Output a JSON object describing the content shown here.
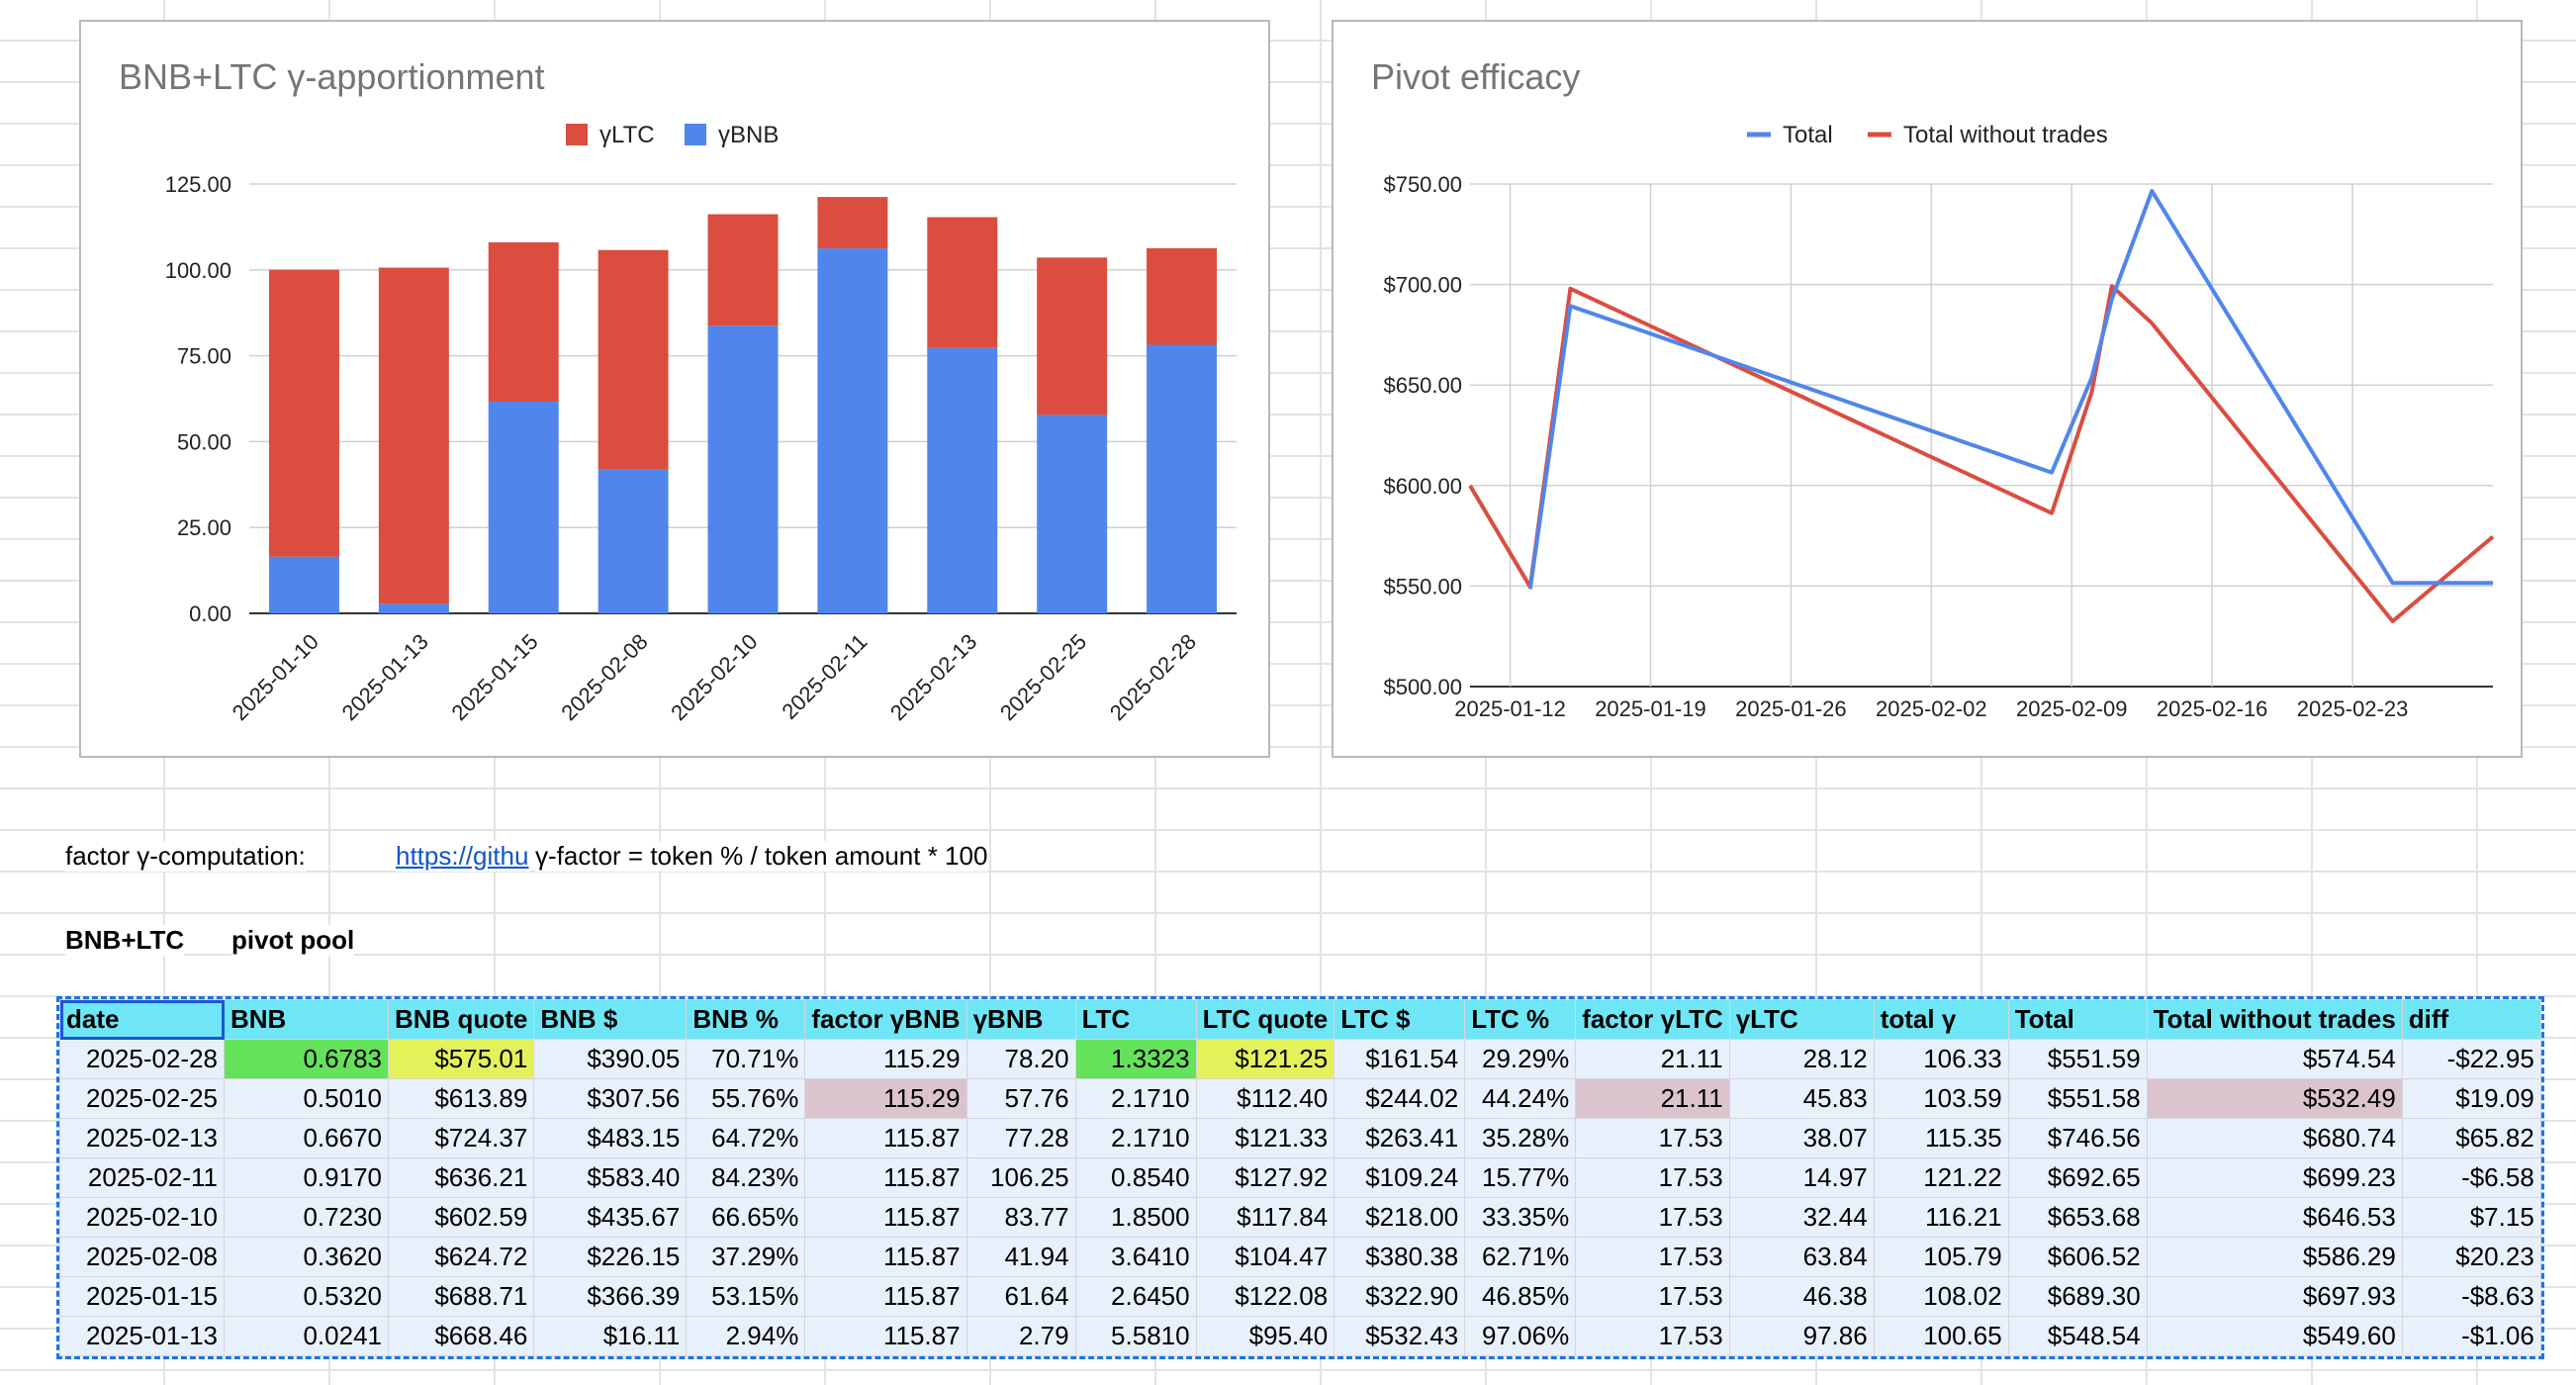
{
  "chart_data": [
    {
      "type": "bar",
      "stacked": true,
      "title": "BNB+LTC γ-apportionment",
      "legend_position": "top",
      "categories": [
        "2025-01-10",
        "2025-01-13",
        "2025-01-15",
        "2025-02-08",
        "2025-02-10",
        "2025-02-11",
        "2025-02-13",
        "2025-02-25",
        "2025-02-28"
      ],
      "series": [
        {
          "name": "γLTC",
          "color": "#db4d3f",
          "values": [
            83.5,
            97.86,
            46.38,
            63.84,
            32.44,
            14.97,
            38.07,
            45.83,
            28.12
          ]
        },
        {
          "name": "γBNB",
          "color": "#5086ec",
          "values": [
            16.5,
            2.79,
            61.64,
            41.94,
            83.77,
            106.25,
            77.28,
            57.76,
            78.2
          ]
        }
      ],
      "legend_order": [
        "γLTC",
        "γBNB"
      ],
      "yticks": [
        "0.00",
        "25.00",
        "50.00",
        "75.00",
        "100.00",
        "125.00"
      ],
      "ylim": [
        0,
        125
      ],
      "grid": true
    },
    {
      "type": "line",
      "title": "Pivot efficacy",
      "legend_position": "top",
      "xticks": [
        "2025-01-12",
        "2025-01-19",
        "2025-01-26",
        "2025-02-02",
        "2025-02-09",
        "2025-02-16",
        "2025-02-23"
      ],
      "xlim": [
        "2025-01-10",
        "2025-03-02"
      ],
      "yticks": [
        "$500.00",
        "$550.00",
        "$600.00",
        "$650.00",
        "$700.00",
        "$750.00"
      ],
      "ylim": [
        500,
        750
      ],
      "grid": true,
      "series": [
        {
          "name": "Total",
          "color": "#5086ec",
          "x": [
            "2025-01-13",
            "2025-01-15",
            "2025-02-08",
            "2025-02-10",
            "2025-02-11",
            "2025-02-13",
            "2025-02-25",
            "2025-03-02"
          ],
          "y": [
            548.54,
            689.3,
            606.52,
            653.68,
            692.65,
            746.56,
            551.59,
            551.59
          ]
        },
        {
          "name": "Total without trades",
          "color": "#db4d3f",
          "x": [
            "2025-01-10",
            "2025-01-13",
            "2025-01-15",
            "2025-02-08",
            "2025-02-10",
            "2025-02-11",
            "2025-02-13",
            "2025-02-25",
            "2025-03-02"
          ],
          "y": [
            600.0,
            549.6,
            697.93,
            586.29,
            646.53,
            699.23,
            680.74,
            532.49,
            574.54
          ]
        }
      ]
    }
  ],
  "notes": {
    "factor_label": "factor γ-computation:",
    "link_text": "https://githu",
    "formula": "γ-factor = token % / token amount * 100",
    "pool_name": "BNB+LTC",
    "pool_type": "pivot pool"
  },
  "table": {
    "headers": [
      "date",
      "BNB",
      "BNB quote",
      "BNB $",
      "BNB %",
      "factor γBNB",
      "γBNB",
      "LTC",
      "LTC quote",
      "LTC $",
      "LTC %",
      "factor γLTC",
      "γLTC",
      "total γ",
      "Total",
      "Total without trades",
      "diff"
    ],
    "rows": [
      [
        "2025-02-28",
        "0.6783",
        "$575.01",
        "$390.05",
        "70.71%",
        "115.29",
        "78.20",
        "1.3323",
        "$121.25",
        "$161.54",
        "29.29%",
        "21.11",
        "28.12",
        "106.33",
        "$551.59",
        "$574.54",
        "-$22.95"
      ],
      [
        "2025-02-25",
        "0.5010",
        "$613.89",
        "$307.56",
        "55.76%",
        "115.29",
        "57.76",
        "2.1710",
        "$112.40",
        "$244.02",
        "44.24%",
        "21.11",
        "45.83",
        "103.59",
        "$551.58",
        "$532.49",
        "$19.09"
      ],
      [
        "2025-02-13",
        "0.6670",
        "$724.37",
        "$483.15",
        "64.72%",
        "115.87",
        "77.28",
        "2.1710",
        "$121.33",
        "$263.41",
        "35.28%",
        "17.53",
        "38.07",
        "115.35",
        "$746.56",
        "$680.74",
        "$65.82"
      ],
      [
        "2025-02-11",
        "0.9170",
        "$636.21",
        "$583.40",
        "84.23%",
        "115.87",
        "106.25",
        "0.8540",
        "$127.92",
        "$109.24",
        "15.77%",
        "17.53",
        "14.97",
        "121.22",
        "$692.65",
        "$699.23",
        "-$6.58"
      ],
      [
        "2025-02-10",
        "0.7230",
        "$602.59",
        "$435.67",
        "66.65%",
        "115.87",
        "83.77",
        "1.8500",
        "$117.84",
        "$218.00",
        "33.35%",
        "17.53",
        "32.44",
        "116.21",
        "$653.68",
        "$646.53",
        "$7.15"
      ],
      [
        "2025-02-08",
        "0.3620",
        "$624.72",
        "$226.15",
        "37.29%",
        "115.87",
        "41.94",
        "3.6410",
        "$104.47",
        "$380.38",
        "62.71%",
        "17.53",
        "63.84",
        "105.79",
        "$606.52",
        "$586.29",
        "$20.23"
      ],
      [
        "2025-01-15",
        "0.5320",
        "$688.71",
        "$366.39",
        "53.15%",
        "115.87",
        "61.64",
        "2.6450",
        "$122.08",
        "$322.90",
        "46.85%",
        "17.53",
        "46.38",
        "108.02",
        "$689.30",
        "$697.93",
        "-$8.63"
      ],
      [
        "2025-01-13",
        "0.0241",
        "$668.46",
        "$16.11",
        "2.94%",
        "115.87",
        "2.79",
        "5.5810",
        "$95.40",
        "$532.43",
        "97.06%",
        "17.53",
        "97.86",
        "100.65",
        "$548.54",
        "$549.60",
        "-$1.06"
      ]
    ]
  }
}
